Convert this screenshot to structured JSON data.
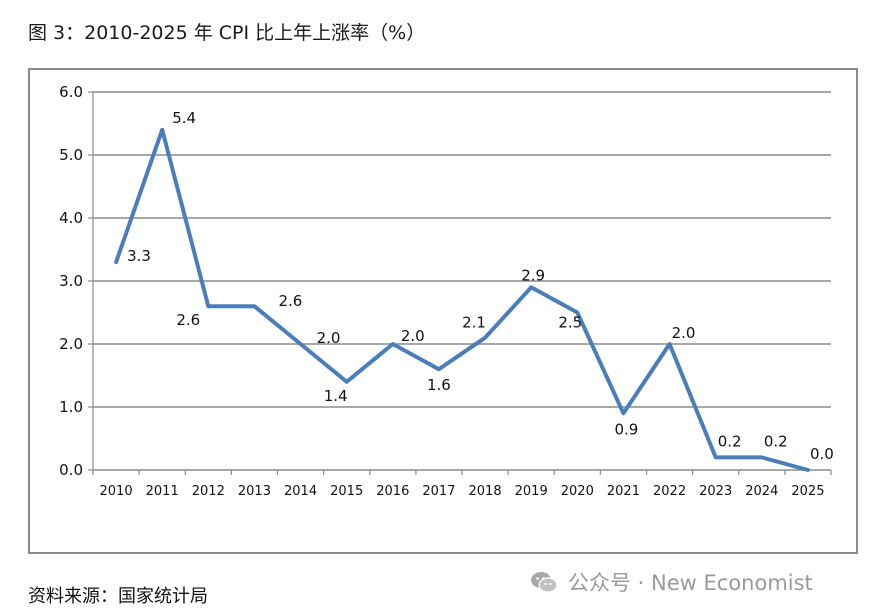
{
  "page": {
    "title": "图 3：2010-2025 年 CPI 比上年上涨率（%）",
    "source": "资料来源：国家统计局",
    "watermark": "公众号 · New Economist"
  },
  "colors": {
    "line": "#4a7ebb",
    "grid": "#8c8c8c",
    "frame": "#8a8a8a",
    "watermark": "#9a9a9a"
  },
  "icons": {
    "watermark": "wechat-icon"
  },
  "chart_data": {
    "type": "line",
    "title": "图 3：2010-2025 年 CPI 比上年上涨率（%）",
    "xlabel": "",
    "ylabel": "",
    "categories": [
      "2010",
      "2011",
      "2012",
      "2013",
      "2014",
      "2015",
      "2016",
      "2017",
      "2018",
      "2019",
      "2020",
      "2021",
      "2022",
      "2023",
      "2024",
      "2025"
    ],
    "series": [
      {
        "values": [
          3.3,
          5.4,
          2.6,
          2.6,
          2.0,
          1.4,
          2.0,
          1.6,
          2.1,
          2.9,
          2.5,
          0.9,
          2.0,
          0.2,
          0.2,
          0.0
        ]
      }
    ],
    "data_labels": [
      "3.3",
      "5.4",
      "2.6",
      "2.6",
      "2.0",
      "1.4",
      "2.0",
      "1.6",
      "2.1",
      "2.9",
      "2.5",
      "0.9",
      "2.0",
      "0.2",
      "0.2",
      "0.0"
    ],
    "y_ticks": [
      "0.0",
      "1.0",
      "2.0",
      "3.0",
      "4.0",
      "5.0",
      "6.0"
    ],
    "ylim": [
      0,
      6
    ],
    "grid": true,
    "legend": "none"
  }
}
